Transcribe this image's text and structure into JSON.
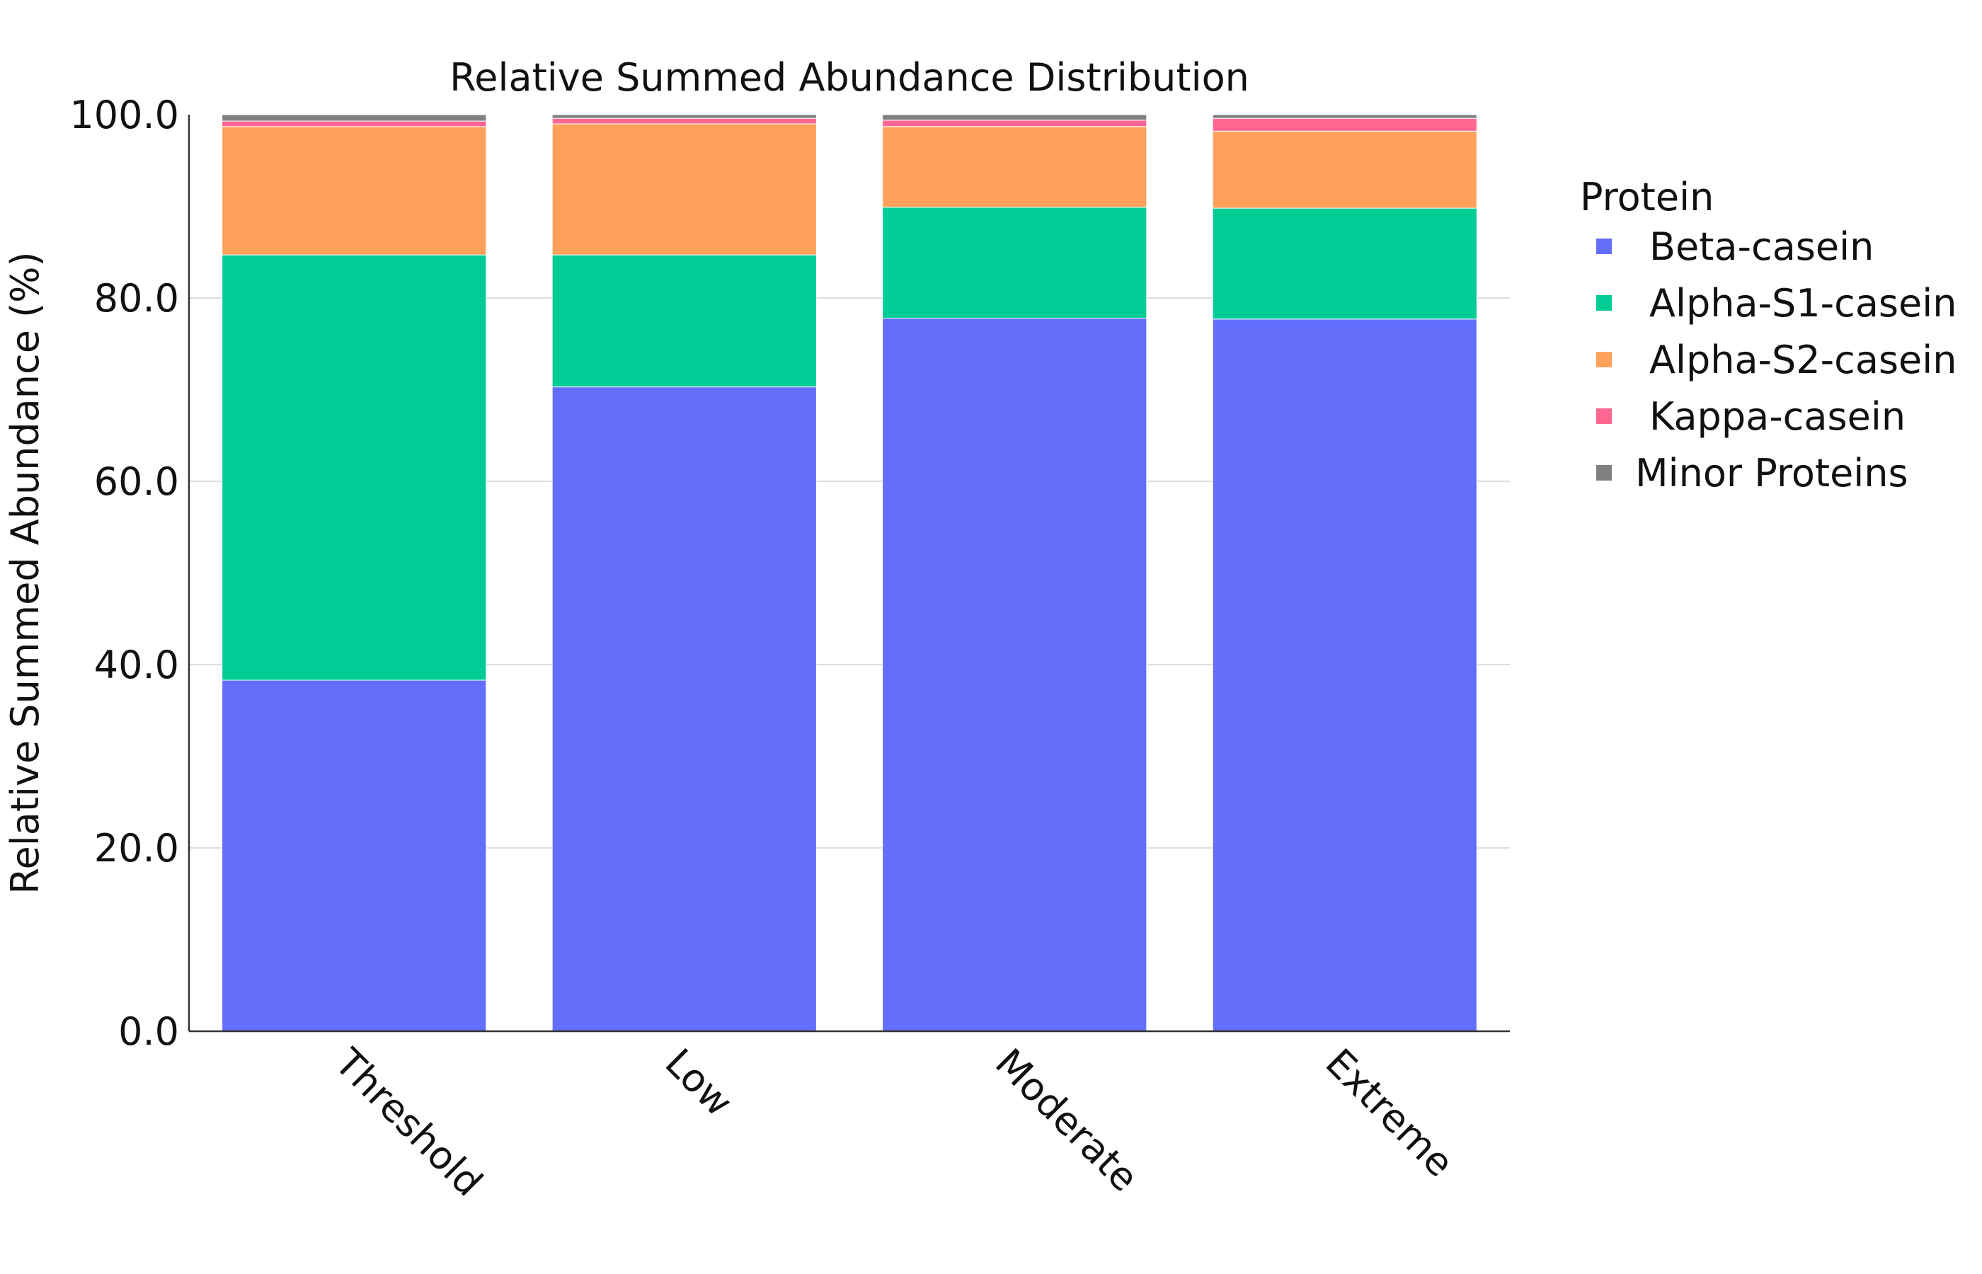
{
  "chart_data": {
    "type": "bar",
    "stacked": true,
    "title": "Relative Summed Abundance Distribution",
    "xlabel": "",
    "ylabel": "Relative Summed Abundance (%)",
    "ylim": [
      0,
      100
    ],
    "yticks": [
      "0.0",
      "20.0",
      "40.0",
      "60.0",
      "80.0",
      "100.0"
    ],
    "grid": true,
    "categories": [
      "Threshold",
      "Low",
      "Moderate",
      "Extreme"
    ],
    "legend": {
      "title": "Protein",
      "placement": "right"
    },
    "series": [
      {
        "name": "Beta-casein",
        "color": "#636EFA",
        "values": [
          38.3,
          70.3,
          77.8,
          77.7
        ]
      },
      {
        "name": "Alpha-S1-casein",
        "color": "#00CC96",
        "values": [
          46.4,
          14.4,
          12.1,
          12.1
        ]
      },
      {
        "name": "Alpha-S2-casein",
        "color": "#FFA15A",
        "values": [
          14.0,
          14.3,
          8.8,
          8.4
        ]
      },
      {
        "name": "Kappa-casein",
        "color": "#FF6692",
        "values": [
          0.6,
          0.6,
          0.7,
          1.4
        ]
      },
      {
        "name": "Minor Proteins",
        "color": "#808080",
        "values": [
          0.7,
          0.4,
          0.6,
          0.4
        ]
      }
    ]
  }
}
